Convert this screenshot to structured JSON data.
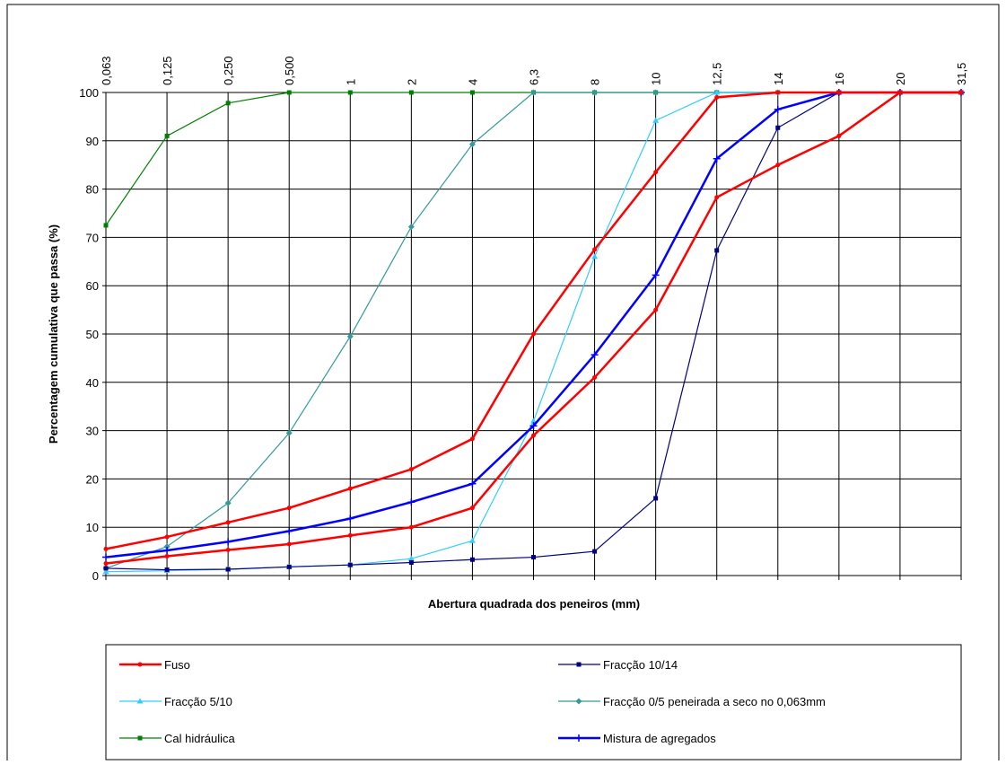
{
  "chart_data": {
    "type": "line",
    "x_label": "Abertura quadrada dos peneiros (mm)",
    "y_label": "Percentagem cumulativa que passa (%)",
    "categories": [
      "0,063",
      "0,125",
      "0,250",
      "0,500",
      "1",
      "2",
      "4",
      "6,3",
      "8",
      "10",
      "12,5",
      "14",
      "16",
      "20",
      "31,5"
    ],
    "ylim": [
      0,
      100
    ],
    "yticks": [
      0,
      10,
      20,
      30,
      40,
      50,
      60,
      70,
      80,
      90,
      100
    ],
    "grid": true,
    "series": [
      {
        "name": "Fuso",
        "color": "#ff0000",
        "marker": "circle",
        "values": [
          2.5,
          4,
          5.3,
          6.5,
          8.3,
          10,
          14,
          29,
          41,
          55,
          78.3,
          85,
          91,
          100,
          100
        ],
        "upper": [
          5.5,
          8,
          11,
          14,
          18,
          22,
          28.3,
          50,
          67.5,
          83.5,
          99,
          100,
          100,
          100,
          100
        ]
      },
      {
        "name": "Fracção 10/14",
        "color": "#000080",
        "marker": "square",
        "values": [
          1.5,
          1.2,
          1.3,
          1.8,
          2.2,
          2.7,
          3.3,
          3.8,
          5,
          16,
          67.3,
          92.7,
          100,
          100,
          100
        ]
      },
      {
        "name": "Fracção 5/10",
        "color": "#33ccff",
        "marker": "triangle",
        "values": [
          0.8,
          1,
          1.3,
          1.8,
          2.2,
          3.5,
          7.2,
          32,
          66,
          94.2,
          100,
          100,
          100,
          100,
          100
        ]
      },
      {
        "name": "Fracção 0/5 peneirada a seco no 0,063mm",
        "color": "#339999",
        "marker": "diamond",
        "values": [
          1.5,
          6,
          15,
          29.5,
          49.5,
          72.2,
          89.3,
          100,
          100,
          100,
          100,
          100,
          100,
          100,
          100
        ]
      },
      {
        "name": "Cal hidráulica",
        "color": "#008000",
        "marker": "square",
        "values": [
          72.5,
          91,
          97.8,
          100,
          100,
          100,
          100,
          100,
          100,
          100,
          100,
          100,
          100,
          100,
          100
        ]
      },
      {
        "name": "Mistura de agregados",
        "color": "#0000ff",
        "marker": "plus",
        "values": [
          3.8,
          5.2,
          7,
          9.2,
          11.8,
          15.2,
          19,
          31,
          45.7,
          62.2,
          86.3,
          96.5,
          100,
          100,
          100
        ]
      }
    ]
  }
}
